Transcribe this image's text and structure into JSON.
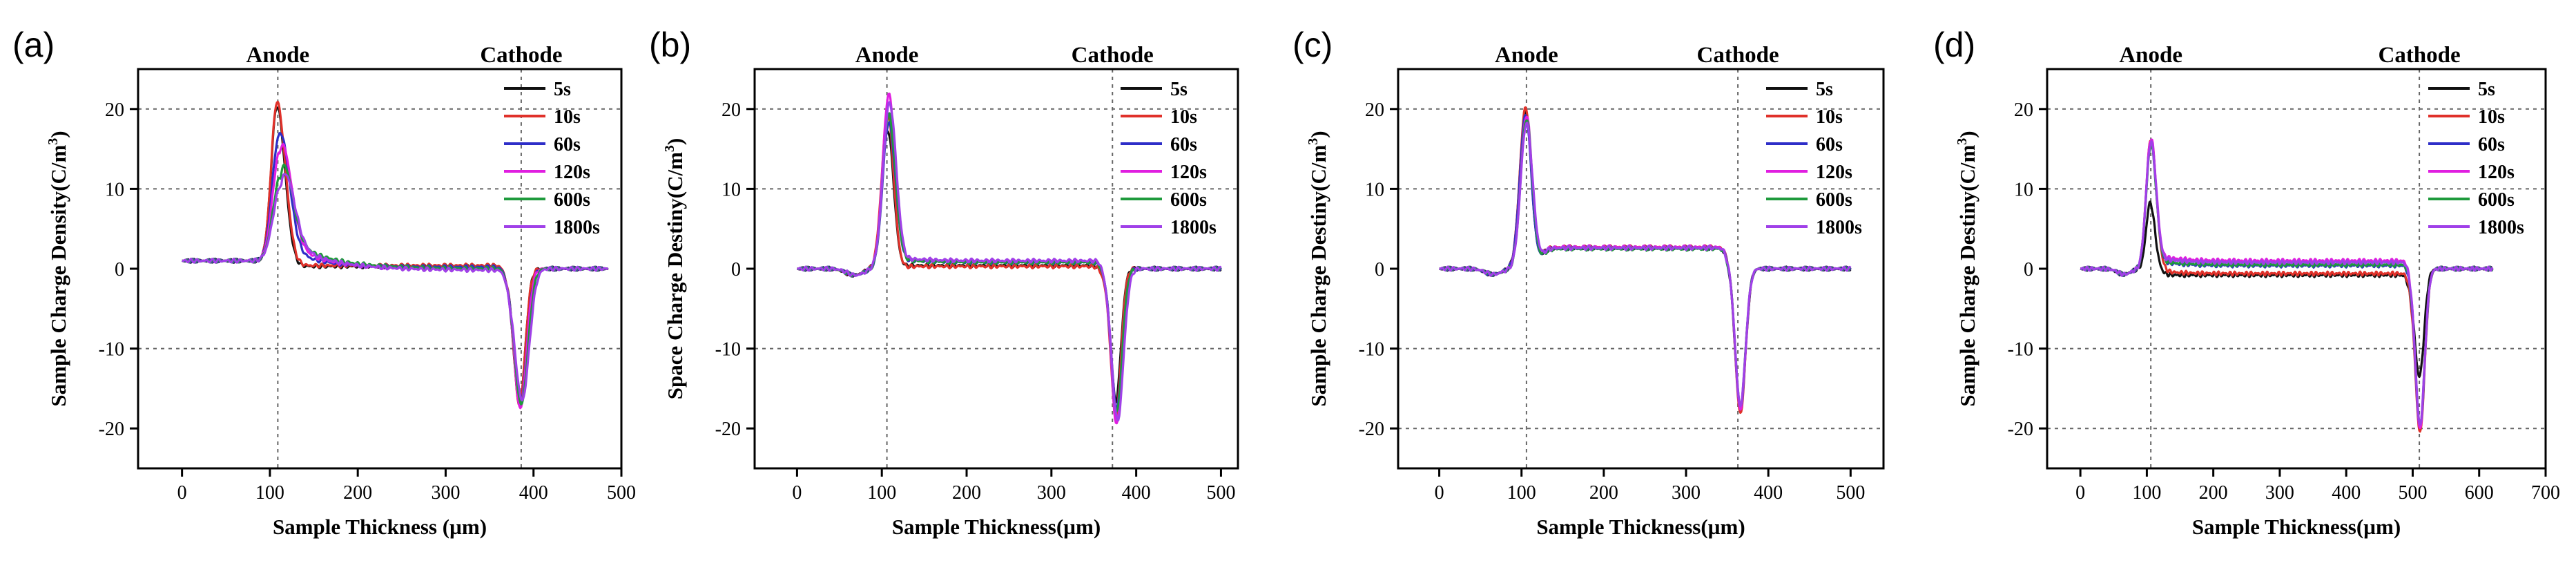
{
  "figure": {
    "description_free": true,
    "legend_colors": {
      "5s": "#111111",
      "10s": "#e0312a",
      "60s": "#2e2ec8",
      "120s": "#e01ee0",
      "600s": "#1e9a3c",
      "1800s": "#a040e8"
    }
  },
  "chart_data": [
    {
      "type": "line",
      "panel": "(a)",
      "xlabel": "Sample Thickness (µm)",
      "ylabel": "Sample Charge Density(C/m3)",
      "ylabel_main": "Sample Charge Density(C/m",
      "ylabel_sup": "3",
      "ylabel_tail": ")",
      "xlim": [
        -50,
        500
      ],
      "ylim": [
        -25,
        25
      ],
      "xticks": [
        0,
        100,
        200,
        300,
        400,
        500
      ],
      "yticks": [
        -20,
        -10,
        0,
        10,
        20
      ],
      "hgrid": [
        -10,
        10,
        20
      ],
      "anode_x": 109,
      "cathode_x": 386,
      "anode_label": "Anode",
      "cathode_label": "Cathode",
      "model": {
        "start": 0,
        "end": 485,
        "base": 1.0,
        "post": 0.0,
        "negDepth": 0.0
      },
      "series": [
        {
          "name": "5s",
          "color": "#111111",
          "peak": {
            "x": 108,
            "h": 19.5,
            "wl": 6.5,
            "wr": 9.0
          },
          "valley": {
            "x": 384,
            "d": -17.0,
            "w": 6.5
          },
          "tailAmp": 0.0,
          "tailDecay": 45,
          "plateau": 0.3
        },
        {
          "name": "10s",
          "color": "#e0312a",
          "peak": {
            "x": 108,
            "h": 20.0,
            "wl": 6.5,
            "wr": 9.5
          },
          "valley": {
            "x": 384,
            "d": -17.0,
            "w": 6.5
          },
          "tailAmp": 0.0,
          "tailDecay": 45,
          "plateau": 0.4
        },
        {
          "name": "60s",
          "color": "#2e2ec8",
          "peak": {
            "x": 110,
            "h": 15.5,
            "wl": 7.5,
            "wr": 11
          },
          "valley": {
            "x": 385,
            "d": -17.0,
            "w": 7
          },
          "tailAmp": 3.0,
          "tailDecay": 35,
          "plateau": 0.2
        },
        {
          "name": "120s",
          "color": "#e01ee0",
          "peak": {
            "x": 111,
            "h": 13.5,
            "wl": 8,
            "wr": 12
          },
          "valley": {
            "x": 385,
            "d": -17.5,
            "w": 7
          },
          "tailAmp": 4.0,
          "tailDecay": 40,
          "plateau": 0.0
        },
        {
          "name": "600s",
          "color": "#1e9a3c",
          "peak": {
            "x": 112,
            "h": 10.5,
            "wl": 8.5,
            "wr": 12
          },
          "valley": {
            "x": 386,
            "d": -17.0,
            "w": 7.5
          },
          "tailAmp": 4.5,
          "tailDecay": 45,
          "plateau": 0.0
        },
        {
          "name": "1800s",
          "color": "#a040e8",
          "peak": {
            "x": 113,
            "h": 9.5,
            "wl": 9,
            "wr": 13
          },
          "valley": {
            "x": 387,
            "d": -16.5,
            "w": 8
          },
          "tailAmp": 4.0,
          "tailDecay": 48,
          "plateau": -0.2
        }
      ]
    },
    {
      "type": "line",
      "panel": "(b)",
      "xlabel": "Sample Thickness(µm)",
      "ylabel": "Space Charge Destiny(C/m3)",
      "ylabel_main": "Space Charge Destiny(C/m",
      "ylabel_sup": "3",
      "ylabel_tail": ")",
      "xlim": [
        -50,
        520
      ],
      "ylim": [
        -25,
        25
      ],
      "xticks": [
        0,
        100,
        200,
        300,
        400,
        500
      ],
      "yticks": [
        -20,
        -10,
        0,
        10,
        20
      ],
      "hgrid": [
        -10,
        10,
        20
      ],
      "anode_x": 106,
      "cathode_x": 372,
      "anode_label": "Anode",
      "cathode_label": "Cathode",
      "model": {
        "start": 0,
        "end": 500,
        "base": 0.0,
        "post": 0.0,
        "negDepth": -0.8
      },
      "series": [
        {
          "name": "5s",
          "color": "#111111",
          "peak": {
            "x": 107,
            "h": 17.5,
            "wl": 7,
            "wr": 7
          },
          "valley": {
            "x": 376,
            "d": -16.5,
            "w": 6
          },
          "tailAmp": 0.0,
          "tailDecay": 30,
          "plateau": 0.4
        },
        {
          "name": "10s",
          "color": "#e0312a",
          "peak": {
            "x": 107,
            "h": 19.5,
            "wl": 7,
            "wr": 7
          },
          "valley": {
            "x": 376,
            "d": -18.5,
            "w": 6
          },
          "tailAmp": 0.0,
          "tailDecay": 30,
          "plateau": 0.3
        },
        {
          "name": "60s",
          "color": "#2e2ec8",
          "peak": {
            "x": 108,
            "h": 18.5,
            "wl": 7,
            "wr": 8
          },
          "valley": {
            "x": 377,
            "d": -17.5,
            "w": 6.5
          },
          "tailAmp": 0.6,
          "tailDecay": 30,
          "plateau": 0.8
        },
        {
          "name": "120s",
          "color": "#e01ee0",
          "peak": {
            "x": 108,
            "h": 22.0,
            "wl": 7,
            "wr": 8
          },
          "valley": {
            "x": 377,
            "d": -19.5,
            "w": 6.5
          },
          "tailAmp": 0.6,
          "tailDecay": 30,
          "plateau": 0.9
        },
        {
          "name": "600s",
          "color": "#1e9a3c",
          "peak": {
            "x": 108,
            "h": 19.5,
            "wl": 7,
            "wr": 8
          },
          "valley": {
            "x": 377,
            "d": -18.0,
            "w": 6.5
          },
          "tailAmp": 0.6,
          "tailDecay": 30,
          "plateau": 0.8
        },
        {
          "name": "1800s",
          "color": "#a040e8",
          "peak": {
            "x": 109,
            "h": 21.0,
            "wl": 7.5,
            "wr": 8
          },
          "valley": {
            "x": 378,
            "d": -19.0,
            "w": 7
          },
          "tailAmp": 0.6,
          "tailDecay": 30,
          "plateau": 1.0
        }
      ]
    },
    {
      "type": "line",
      "panel": "(c)",
      "xlabel": "Sample Thickness(µm)",
      "ylabel": "Sample Charge Destiny(C/m3)",
      "ylabel_main": "Sample Charge Destiny(C/m",
      "ylabel_sup": "3",
      "ylabel_tail": ")",
      "xlim": [
        -50,
        540
      ],
      "ylim": [
        -25,
        25
      ],
      "xticks": [
        0,
        100,
        200,
        300,
        400,
        500
      ],
      "yticks": [
        -20,
        -10,
        0,
        10,
        20
      ],
      "hgrid": [
        -20,
        -10,
        10,
        20
      ],
      "anode_x": 106,
      "cathode_x": 363,
      "anode_label": "Anode",
      "cathode_label": "Cathode",
      "model": {
        "start": 0,
        "end": 500,
        "base": 0.0,
        "post": 0.0,
        "negDepth": -0.7
      },
      "series": [
        {
          "name": "5s",
          "color": "#111111",
          "peak": {
            "x": 105,
            "h": 20.5,
            "wl": 7,
            "wr": 7
          },
          "valley": {
            "x": 366,
            "d": -17.5,
            "w": 6.5
          },
          "tailAmp": 0.0,
          "tailDecay": 30,
          "plateau": 2.6
        },
        {
          "name": "10s",
          "color": "#e0312a",
          "peak": {
            "x": 105,
            "h": 21.0,
            "wl": 7,
            "wr": 7
          },
          "valley": {
            "x": 366,
            "d": -18.0,
            "w": 6.5
          },
          "tailAmp": 0.0,
          "tailDecay": 30,
          "plateau": 2.7
        },
        {
          "name": "60s",
          "color": "#2e2ec8",
          "peak": {
            "x": 105,
            "h": 20.0,
            "wl": 7,
            "wr": 7
          },
          "valley": {
            "x": 366,
            "d": -17.5,
            "w": 6.5
          },
          "tailAmp": 0.0,
          "tailDecay": 30,
          "plateau": 2.6
        },
        {
          "name": "120s",
          "color": "#e01ee0",
          "peak": {
            "x": 106,
            "h": 20.0,
            "wl": 7,
            "wr": 7
          },
          "valley": {
            "x": 366,
            "d": -17.5,
            "w": 6.5
          },
          "tailAmp": 0.0,
          "tailDecay": 30,
          "plateau": 2.7
        },
        {
          "name": "600s",
          "color": "#1e9a3c",
          "peak": {
            "x": 106,
            "h": 19.5,
            "wl": 7,
            "wr": 7
          },
          "valley": {
            "x": 366,
            "d": -17.0,
            "w": 6.5
          },
          "tailAmp": 0.0,
          "tailDecay": 30,
          "plateau": 2.5
        },
        {
          "name": "1800s",
          "color": "#a040e8",
          "peak": {
            "x": 106,
            "h": 19.0,
            "wl": 7,
            "wr": 7.5
          },
          "valley": {
            "x": 366,
            "d": -17.0,
            "w": 6.5
          },
          "tailAmp": 0.0,
          "tailDecay": 30,
          "plateau": 2.6
        }
      ]
    },
    {
      "type": "line",
      "panel": "(d)",
      "xlabel": "Sample Thickness(µm)",
      "ylabel": "Sample Charge Destiny(C/m3)",
      "ylabel_main": "Sample Charge Destiny(C/m",
      "ylabel_sup": "3",
      "ylabel_tail": ")",
      "xlim": [
        -50,
        700
      ],
      "ylim": [
        -25,
        25
      ],
      "xticks": [
        0,
        100,
        200,
        300,
        400,
        500,
        600,
        700
      ],
      "yticks": [
        -20,
        -10,
        0,
        10,
        20
      ],
      "hgrid": [
        -20,
        -10,
        10,
        20
      ],
      "anode_x": 106,
      "cathode_x": 510,
      "anode_label": "Anode",
      "cathode_label": "Cathode",
      "model": {
        "start": 0,
        "end": 620,
        "base": 0.0,
        "post": 0.0,
        "negDepth": -0.7
      },
      "series": [
        {
          "name": "5s",
          "color": "#111111",
          "peak": {
            "x": 105,
            "h": 8.0,
            "wl": 6,
            "wr": 7
          },
          "valley": {
            "x": 510,
            "d": -13.5,
            "w": 7
          },
          "tailAmp": 0.0,
          "tailDecay": 30,
          "plateau": -0.8
        },
        {
          "name": "10s",
          "color": "#e0312a",
          "peak": {
            "x": 106,
            "h": 16.0,
            "wl": 7,
            "wr": 8
          },
          "valley": {
            "x": 511,
            "d": -20.5,
            "w": 7
          },
          "tailAmp": 0.5,
          "tailDecay": 30,
          "plateau": -0.6
        },
        {
          "name": "60s",
          "color": "#2e2ec8",
          "peak": {
            "x": 106,
            "h": 16.0,
            "wl": 7,
            "wr": 8
          },
          "valley": {
            "x": 511,
            "d": -20.0,
            "w": 7
          },
          "tailAmp": 0.8,
          "tailDecay": 30,
          "plateau": 0.4
        },
        {
          "name": "120s",
          "color": "#e01ee0",
          "peak": {
            "x": 106,
            "h": 16.5,
            "wl": 7,
            "wr": 8
          },
          "valley": {
            "x": 511,
            "d": -20.0,
            "w": 7
          },
          "tailAmp": 1.0,
          "tailDecay": 30,
          "plateau": 1.0
        },
        {
          "name": "600s",
          "color": "#1e9a3c",
          "peak": {
            "x": 106,
            "h": 15.5,
            "wl": 7,
            "wr": 8
          },
          "valley": {
            "x": 511,
            "d": -19.5,
            "w": 7
          },
          "tailAmp": 0.8,
          "tailDecay": 30,
          "plateau": 0.5
        },
        {
          "name": "1800s",
          "color": "#a040e8",
          "peak": {
            "x": 106,
            "h": 16.0,
            "wl": 7,
            "wr": 8
          },
          "valley": {
            "x": 511,
            "d": -19.5,
            "w": 7
          },
          "tailAmp": 0.9,
          "tailDecay": 30,
          "plateau": 0.8
        }
      ]
    }
  ]
}
